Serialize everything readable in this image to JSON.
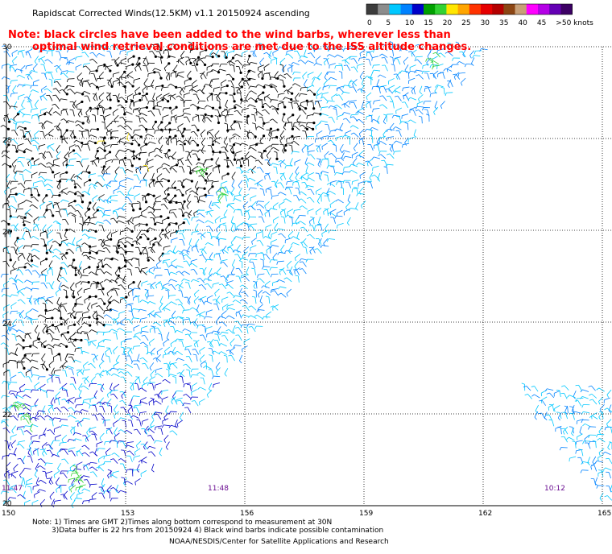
{
  "header": {
    "title": "Rapidscat Corrected Winds(12.5KM) v1.1 20150924 ascending"
  },
  "note": {
    "line1": "Note: black circles have been added to the wind barbs, wherever less than",
    "line2": "optimal wind retrieval conditions are met due to the ISS altitude changes."
  },
  "colorbar": {
    "labels": [
      "0",
      "5",
      "10",
      "15",
      "20",
      "25",
      "30",
      "35",
      "40",
      "45",
      ">50 knots"
    ],
    "colors": [
      "#3c3c3c",
      "#8c8c8c",
      "#00c8ff",
      "#0082ff",
      "#0000c8",
      "#00a000",
      "#32d232",
      "#ffe600",
      "#ffa500",
      "#ff3200",
      "#e60000",
      "#b40000",
      "#8c4614",
      "#c8a078",
      "#ff00ff",
      "#b400e6",
      "#6400b4",
      "#3c0064"
    ]
  },
  "axes": {
    "lat_labels": [
      "30",
      "28",
      "26",
      "24",
      "22",
      "20"
    ],
    "lon_labels": [
      "150",
      "153",
      "156",
      "159",
      "162",
      "165"
    ]
  },
  "times": {
    "left": "11:47",
    "middle": "11:48",
    "right": "10:12"
  },
  "footer": {
    "line1": "Note: 1) Times are GMT 2)Times along bottom correspond to measurement at 30N",
    "line2": "3)Data buffer is 22 hrs from 20150924 4) Black wind barbs indicate possible contamination",
    "line3": "NOAA/NESDIS/Center for Satellite Applications and Research"
  }
}
